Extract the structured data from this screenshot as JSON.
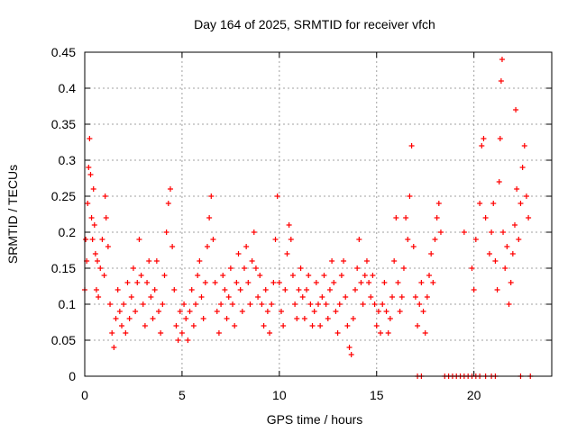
{
  "chart_data": {
    "type": "scatter",
    "title": "Day 164 of 2025, SRMTID for receiver vfch",
    "xlabel": "GPS time / hours",
    "ylabel": "SRMTID / TECUs",
    "xlim": [
      0,
      24
    ],
    "ylim": [
      0,
      0.45
    ],
    "xticks": [
      0,
      5,
      10,
      15,
      20
    ],
    "xtick_labels": [
      "0",
      "5",
      "10",
      "15",
      "20"
    ],
    "yticks": [
      0,
      0.05,
      0.1,
      0.15,
      0.2,
      0.25,
      0.3,
      0.35,
      0.4,
      0.45
    ],
    "ytick_labels": [
      "0",
      "0.05",
      "0.1",
      "0.15",
      "0.2",
      "0.25",
      "0.3",
      "0.35",
      "0.4",
      "0.45"
    ],
    "grid": true,
    "marker": "plus",
    "series": [
      {
        "name": "SRMTID",
        "color": "#ff0000",
        "points": [
          [
            0.0,
            0.12
          ],
          [
            0.05,
            0.19
          ],
          [
            0.1,
            0.16
          ],
          [
            0.15,
            0.24
          ],
          [
            0.2,
            0.29
          ],
          [
            0.25,
            0.33
          ],
          [
            0.3,
            0.28
          ],
          [
            0.35,
            0.22
          ],
          [
            0.4,
            0.19
          ],
          [
            0.45,
            0.26
          ],
          [
            0.5,
            0.21
          ],
          [
            0.55,
            0.17
          ],
          [
            0.6,
            0.12
          ],
          [
            0.65,
            0.16
          ],
          [
            0.7,
            0.11
          ],
          [
            0.8,
            0.15
          ],
          [
            0.9,
            0.19
          ],
          [
            1.0,
            0.14
          ],
          [
            1.05,
            0.25
          ],
          [
            1.1,
            0.22
          ],
          [
            1.2,
            0.18
          ],
          [
            1.3,
            0.1
          ],
          [
            1.4,
            0.06
          ],
          [
            1.5,
            0.04
          ],
          [
            1.6,
            0.08
          ],
          [
            1.7,
            0.12
          ],
          [
            1.8,
            0.09
          ],
          [
            1.9,
            0.07
          ],
          [
            2.0,
            0.1
          ],
          [
            2.1,
            0.06
          ],
          [
            2.2,
            0.13
          ],
          [
            2.3,
            0.08
          ],
          [
            2.4,
            0.11
          ],
          [
            2.5,
            0.15
          ],
          [
            2.6,
            0.09
          ],
          [
            2.7,
            0.13
          ],
          [
            2.8,
            0.19
          ],
          [
            2.9,
            0.14
          ],
          [
            3.0,
            0.1
          ],
          [
            3.1,
            0.07
          ],
          [
            3.2,
            0.13
          ],
          [
            3.3,
            0.16
          ],
          [
            3.4,
            0.11
          ],
          [
            3.5,
            0.08
          ],
          [
            3.6,
            0.12
          ],
          [
            3.7,
            0.16
          ],
          [
            3.8,
            0.09
          ],
          [
            3.9,
            0.06
          ],
          [
            4.0,
            0.1
          ],
          [
            4.1,
            0.14
          ],
          [
            4.2,
            0.2
          ],
          [
            4.3,
            0.24
          ],
          [
            4.4,
            0.26
          ],
          [
            4.5,
            0.18
          ],
          [
            4.6,
            0.12
          ],
          [
            4.7,
            0.07
          ],
          [
            4.8,
            0.05
          ],
          [
            4.9,
            0.09
          ],
          [
            5.0,
            0.06
          ],
          [
            5.1,
            0.1
          ],
          [
            5.2,
            0.08
          ],
          [
            5.3,
            0.05
          ],
          [
            5.4,
            0.09
          ],
          [
            5.5,
            0.12
          ],
          [
            5.6,
            0.07
          ],
          [
            5.7,
            0.1
          ],
          [
            5.8,
            0.14
          ],
          [
            5.9,
            0.16
          ],
          [
            6.0,
            0.11
          ],
          [
            6.1,
            0.08
          ],
          [
            6.2,
            0.13
          ],
          [
            6.3,
            0.18
          ],
          [
            6.4,
            0.22
          ],
          [
            6.5,
            0.25
          ],
          [
            6.6,
            0.19
          ],
          [
            6.7,
            0.13
          ],
          [
            6.8,
            0.09
          ],
          [
            6.9,
            0.06
          ],
          [
            7.0,
            0.1
          ],
          [
            7.1,
            0.14
          ],
          [
            7.2,
            0.12
          ],
          [
            7.3,
            0.08
          ],
          [
            7.4,
            0.11
          ],
          [
            7.5,
            0.15
          ],
          [
            7.6,
            0.1
          ],
          [
            7.7,
            0.07
          ],
          [
            7.8,
            0.13
          ],
          [
            7.9,
            0.17
          ],
          [
            8.0,
            0.12
          ],
          [
            8.1,
            0.09
          ],
          [
            8.2,
            0.15
          ],
          [
            8.3,
            0.18
          ],
          [
            8.4,
            0.13
          ],
          [
            8.5,
            0.1
          ],
          [
            8.6,
            0.16
          ],
          [
            8.7,
            0.2
          ],
          [
            8.8,
            0.15
          ],
          [
            8.9,
            0.11
          ],
          [
            9.0,
            0.14
          ],
          [
            9.1,
            0.1
          ],
          [
            9.2,
            0.07
          ],
          [
            9.3,
            0.12
          ],
          [
            9.4,
            0.09
          ],
          [
            9.5,
            0.06
          ],
          [
            9.6,
            0.1
          ],
          [
            9.7,
            0.13
          ],
          [
            9.8,
            0.19
          ],
          [
            9.9,
            0.25
          ],
          [
            10.0,
            0.13
          ],
          [
            10.1,
            0.09
          ],
          [
            10.2,
            0.07
          ],
          [
            10.3,
            0.12
          ],
          [
            10.4,
            0.17
          ],
          [
            10.5,
            0.21
          ],
          [
            10.6,
            0.19
          ],
          [
            10.7,
            0.14
          ],
          [
            10.8,
            0.1
          ],
          [
            10.9,
            0.08
          ],
          [
            11.0,
            0.12
          ],
          [
            11.1,
            0.15
          ],
          [
            11.2,
            0.11
          ],
          [
            11.3,
            0.08
          ],
          [
            11.4,
            0.12
          ],
          [
            11.5,
            0.14
          ],
          [
            11.6,
            0.1
          ],
          [
            11.7,
            0.07
          ],
          [
            11.8,
            0.09
          ],
          [
            11.9,
            0.13
          ],
          [
            12.0,
            0.1
          ],
          [
            12.1,
            0.07
          ],
          [
            12.2,
            0.11
          ],
          [
            12.3,
            0.14
          ],
          [
            12.4,
            0.1
          ],
          [
            12.5,
            0.08
          ],
          [
            12.6,
            0.12
          ],
          [
            12.7,
            0.16
          ],
          [
            12.8,
            0.13
          ],
          [
            12.9,
            0.09
          ],
          [
            13.0,
            0.06
          ],
          [
            13.1,
            0.1
          ],
          [
            13.2,
            0.14
          ],
          [
            13.3,
            0.16
          ],
          [
            13.4,
            0.11
          ],
          [
            13.5,
            0.07
          ],
          [
            13.6,
            0.04
          ],
          [
            13.7,
            0.03
          ],
          [
            13.8,
            0.08
          ],
          [
            13.9,
            0.12
          ],
          [
            14.0,
            0.15
          ],
          [
            14.1,
            0.19
          ],
          [
            14.2,
            0.13
          ],
          [
            14.3,
            0.1
          ],
          [
            14.4,
            0.14
          ],
          [
            14.5,
            0.16
          ],
          [
            14.6,
            0.13
          ],
          [
            14.7,
            0.11
          ],
          [
            14.8,
            0.14
          ],
          [
            14.9,
            0.1
          ],
          [
            15.0,
            0.07
          ],
          [
            15.1,
            0.09
          ],
          [
            15.2,
            0.06
          ],
          [
            15.3,
            0.1
          ],
          [
            15.4,
            0.13
          ],
          [
            15.5,
            0.09
          ],
          [
            15.6,
            0.06
          ],
          [
            15.7,
            0.08
          ],
          [
            15.8,
            0.11
          ],
          [
            15.9,
            0.16
          ],
          [
            16.0,
            0.22
          ],
          [
            16.1,
            0.13
          ],
          [
            16.2,
            0.09
          ],
          [
            16.3,
            0.11
          ],
          [
            16.4,
            0.15
          ],
          [
            16.5,
            0.22
          ],
          [
            16.6,
            0.19
          ],
          [
            16.7,
            0.25
          ],
          [
            16.8,
            0.32
          ],
          [
            16.9,
            0.18
          ],
          [
            17.0,
            0.11
          ],
          [
            17.1,
            0.07
          ],
          [
            17.2,
            0.1
          ],
          [
            17.3,
            0.13
          ],
          [
            17.4,
            0.09
          ],
          [
            17.5,
            0.06
          ],
          [
            17.6,
            0.11
          ],
          [
            17.7,
            0.14
          ],
          [
            17.8,
            0.17
          ],
          [
            17.9,
            0.13
          ],
          [
            18.0,
            0.19
          ],
          [
            18.1,
            0.22
          ],
          [
            18.2,
            0.24
          ],
          [
            18.3,
            0.2
          ],
          [
            19.5,
            0.2
          ],
          [
            19.9,
            0.15
          ],
          [
            20.0,
            0.12
          ],
          [
            20.1,
            0.19
          ],
          [
            20.3,
            0.24
          ],
          [
            20.4,
            0.32
          ],
          [
            20.5,
            0.33
          ],
          [
            20.6,
            0.22
          ],
          [
            20.8,
            0.17
          ],
          [
            20.9,
            0.2
          ],
          [
            21.0,
            0.24
          ],
          [
            21.1,
            0.16
          ],
          [
            21.2,
            0.12
          ],
          [
            21.3,
            0.27
          ],
          [
            21.35,
            0.33
          ],
          [
            21.4,
            0.41
          ],
          [
            21.45,
            0.44
          ],
          [
            21.5,
            0.2
          ],
          [
            21.6,
            0.15
          ],
          [
            21.7,
            0.18
          ],
          [
            21.8,
            0.1
          ],
          [
            21.9,
            0.13
          ],
          [
            22.0,
            0.17
          ],
          [
            22.1,
            0.21
          ],
          [
            22.15,
            0.37
          ],
          [
            22.2,
            0.26
          ],
          [
            22.3,
            0.19
          ],
          [
            22.4,
            0.24
          ],
          [
            22.5,
            0.29
          ],
          [
            22.6,
            0.32
          ],
          [
            22.7,
            0.25
          ],
          [
            22.8,
            0.22
          ],
          [
            17.1,
            0.0
          ],
          [
            17.3,
            0.0
          ],
          [
            18.5,
            0.0
          ],
          [
            18.7,
            0.0
          ],
          [
            18.9,
            0.0
          ],
          [
            19.1,
            0.0
          ],
          [
            19.3,
            0.0
          ],
          [
            19.5,
            0.0
          ],
          [
            19.7,
            0.0
          ],
          [
            19.9,
            0.0
          ],
          [
            20.1,
            0.0
          ],
          [
            20.3,
            0.0
          ],
          [
            20.6,
            0.0
          ],
          [
            20.9,
            0.0
          ],
          [
            21.1,
            0.0
          ],
          [
            22.4,
            0.0
          ],
          [
            22.9,
            0.0
          ]
        ]
      }
    ]
  }
}
